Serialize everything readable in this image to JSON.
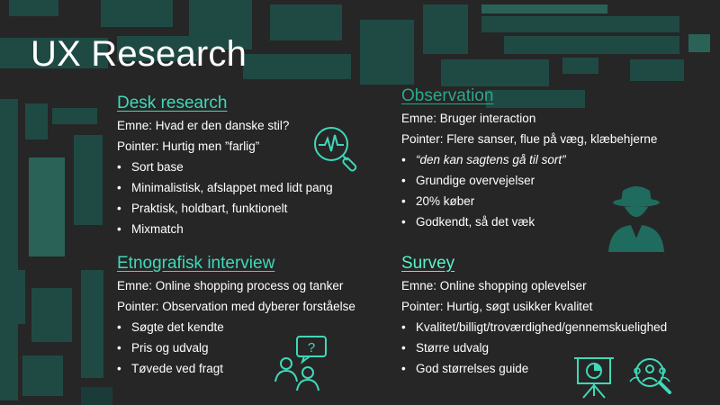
{
  "slide": {
    "title": "UX Research",
    "accent_color": "#3fd9b9",
    "background_color": "#262626",
    "deco_color": "#1f4a44"
  },
  "desk": {
    "heading": "Desk research",
    "subject": "Emne: Hvad er den danske stil?",
    "pointer": "Pointer: Hurtig men ”farlig”",
    "bullets": [
      "Sort base",
      "Minimalistisk, afslappet med lidt pang",
      "Praktisk, holdbart, funktionelt",
      "Mixmatch"
    ],
    "icon": "magnifier-heartbeat-icon"
  },
  "observation": {
    "heading": "Observation",
    "subject": "Emne: Bruger interaction",
    "pointer": "Pointer: Flere sanser, flue på væg, klæbehjerne",
    "bullets": [
      "“den kan sagtens gå til sort”",
      "Grundige overvejelser",
      "20% køber",
      "Godkendt, så det væk"
    ],
    "icon": "spy-icon"
  },
  "interview": {
    "heading": "Etnografisk interview",
    "subject": "Emne: Online shopping process og tanker",
    "pointer": "Pointer: Observation med dyberer forståelse",
    "bullets": [
      "Søgte det kendte",
      "Pris og udvalg",
      "Tøvede ved fragt"
    ],
    "icon": "interview-question-icon"
  },
  "survey": {
    "heading": "Survey",
    "subject": "Emne: Online shopping oplevelser",
    "pointer": "Pointer: Hurtig, søgt usikker kvalitet",
    "bullets": [
      "Kvalitet/billigt/troværdighed/gennemskuelighed",
      "Større udvalg",
      "God størrelses guide"
    ],
    "icons": [
      "presentation-chart-icon",
      "user-search-icon"
    ]
  }
}
